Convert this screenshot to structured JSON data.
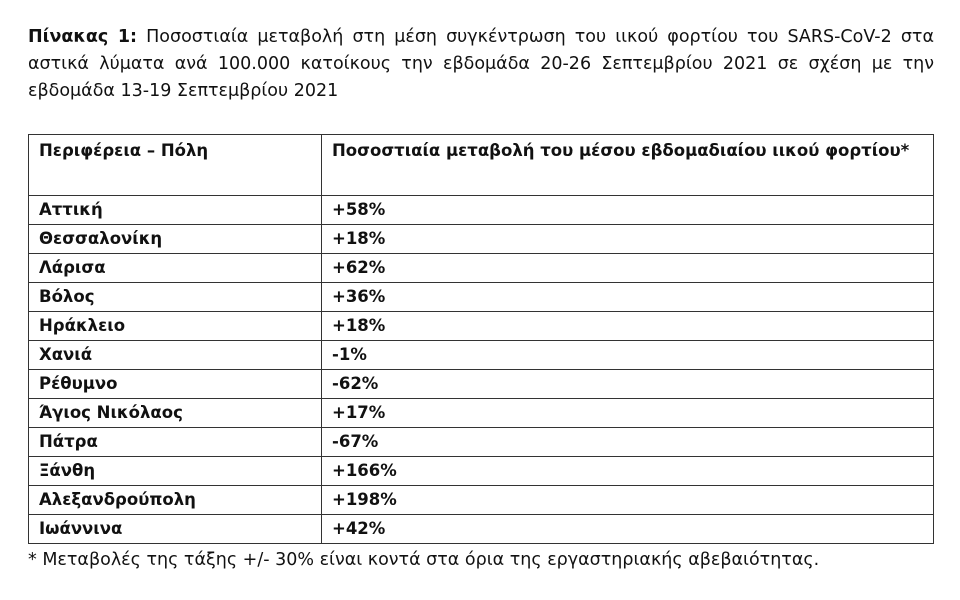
{
  "caption": {
    "label": "Πίνακας 1:",
    "text": "Ποσοστιαία μεταβολή στη μέση συγκέντρωση του ιικού φορτίου του SARS-CoV-2 στα αστικά λύματα ανά 100.000 κατοίκους την εβδομάδα 20-26 Σεπτεμβρίου 2021 σε σχέση με την εβδομάδα 13-19 Σεπτεμβρίου 2021"
  },
  "table": {
    "header": [
      "Περιφέρεια – Πόλη",
      "Ποσοστιαία μεταβολή του μέσου εβδομαδιαίου ιικού φορτίου*"
    ],
    "rows": [
      [
        "Αττική",
        "+58%"
      ],
      [
        "Θεσσαλονίκη",
        "+18%"
      ],
      [
        "Λάρισα",
        "+62%"
      ],
      [
        "Βόλος",
        "+36%"
      ],
      [
        "Ηράκλειο",
        "+18%"
      ],
      [
        "Χανιά",
        "-1%"
      ],
      [
        "Ρέθυμνο",
        "-62%"
      ],
      [
        "Άγιος Νικόλαος",
        "+17%"
      ],
      [
        "Πάτρα",
        "-67%"
      ],
      [
        "Ξάνθη",
        "+166%"
      ],
      [
        "Αλεξανδρούπολη",
        "+198%"
      ],
      [
        "Ιωάννινα",
        "+42%"
      ]
    ]
  },
  "footnote": "* Μεταβολές της τάξης +/- 30% είναι κοντά στα όρια της εργαστηριακής αβεβαιότητας."
}
